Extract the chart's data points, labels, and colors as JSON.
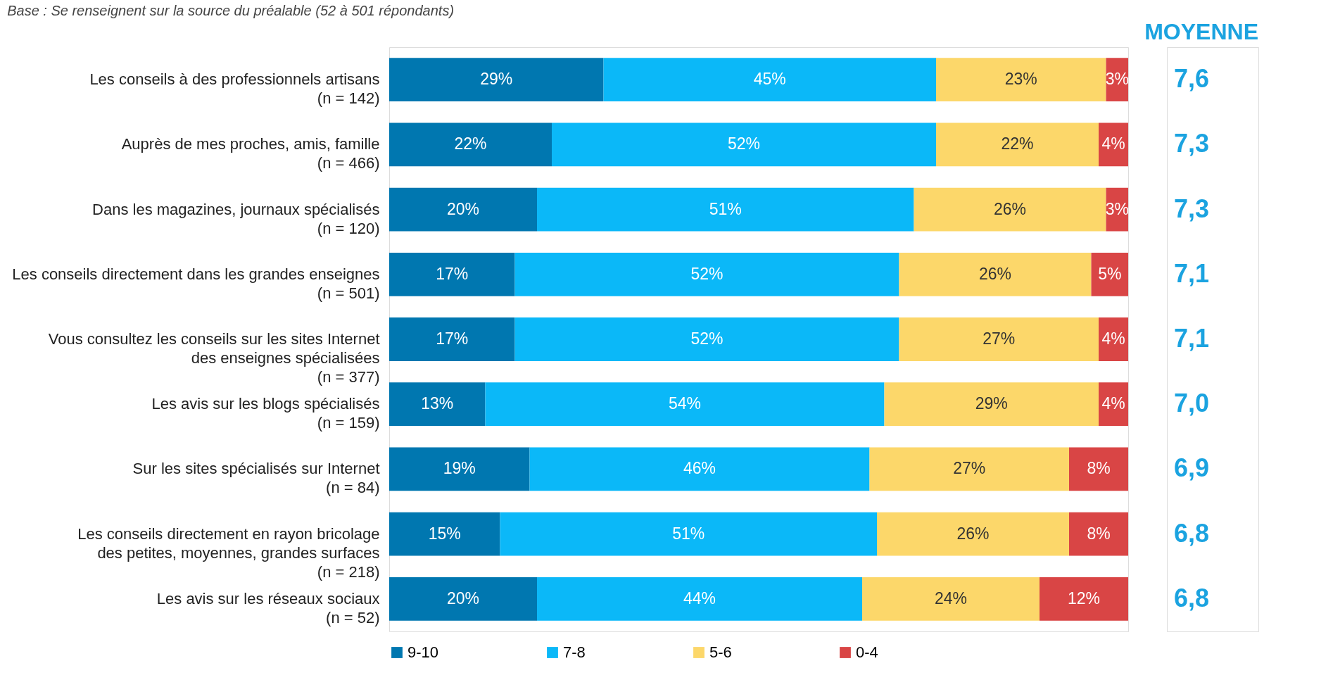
{
  "chart_data": {
    "type": "bar",
    "orientation": "horizontal",
    "stacked": true,
    "legend": "bottom",
    "subtitle": "Base : Se renseignent sur la source du préalable (52 à 501 répondants)",
    "categories": [
      "Les conseils à des professionnels artisans\n(n = 142)",
      "Auprès de mes proches, amis, famille\n(n = 466)",
      "Dans les magazines, journaux spécialisés\n(n = 120)",
      "Les conseils directement dans  les grandes enseignes\n(n = 501)",
      "Vous consultez les conseils sur les sites  Internet\ndes enseignes spécialisées\n(n = 377)",
      "Les avis sur les blogs spécialisés\n(n = 159)",
      "Sur les sites spécialisés sur Internet\n(n = 84)",
      "Les conseils directement en rayon bricolage\ndes petites, moyennes, grandes surfaces\n(n = 218)",
      "Les avis sur les réseaux sociaux\n(n = 52)"
    ],
    "series": [
      {
        "name": "9-10",
        "color": "#0077b0",
        "values": [
          29,
          22,
          20,
          17,
          17,
          13,
          19,
          15,
          20
        ],
        "value_labels": [
          "29%",
          "22%",
          "20%",
          "17%",
          "17%",
          "13%",
          "19%",
          "15%",
          "20%"
        ]
      },
      {
        "name": "7-8",
        "color": "#0bb8f8",
        "values": [
          45,
          52,
          51,
          52,
          52,
          54,
          46,
          51,
          44
        ],
        "value_labels": [
          "45%",
          "52%",
          "51%",
          "52%",
          "52%",
          "54%",
          "46%",
          "51%",
          "44%"
        ]
      },
      {
        "name": "5-6",
        "color": "#fcd76a",
        "values": [
          23,
          22,
          26,
          26,
          27,
          29,
          27,
          26,
          24
        ],
        "value_labels": [
          "23%",
          "22%",
          "26%",
          "26%",
          "27%",
          "29%",
          "27%",
          "26%",
          "24%"
        ]
      },
      {
        "name": "0-4",
        "color": "#d94545",
        "values": [
          3,
          4,
          3,
          5,
          4,
          4,
          8,
          8,
          12
        ],
        "value_labels": [
          "3%",
          "4%",
          "3%",
          "5%",
          "4%",
          "4%",
          "8%",
          "8%",
          "12%"
        ]
      }
    ],
    "annotations": [
      "MOYENNE",
      "7,6",
      "7,3",
      "7,3",
      "7,1",
      "7,1",
      "7,0",
      "6,9",
      "6,8",
      "6,8"
    ]
  }
}
